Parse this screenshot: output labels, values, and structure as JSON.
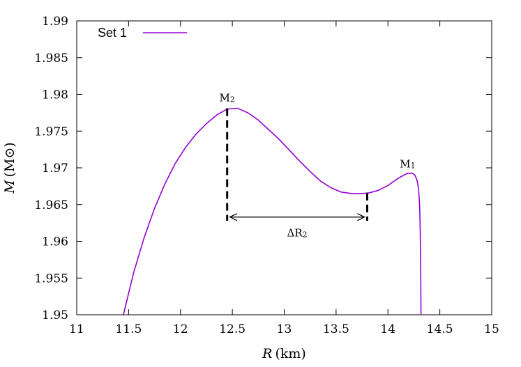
{
  "chart_data": {
    "type": "line",
    "xlabel_var": "R",
    "xlabel_unit": "(km)",
    "ylabel_var": "M",
    "ylabel_unit": "(M⊙)",
    "xlim": [
      11,
      15
    ],
    "ylim": [
      1.95,
      1.99
    ],
    "xticks": [
      11,
      11.5,
      12,
      12.5,
      13,
      13.5,
      14,
      14.5,
      15
    ],
    "xtick_labels": [
      "11",
      "11.5",
      "12",
      "12.5",
      "13",
      "13.5",
      "14",
      "14.5",
      "15"
    ],
    "yticks": [
      1.95,
      1.955,
      1.96,
      1.965,
      1.97,
      1.975,
      1.98,
      1.985,
      1.99
    ],
    "ytick_labels": [
      "1.95",
      "1.955",
      "1.96",
      "1.965",
      "1.97",
      "1.975",
      "1.98",
      "1.985",
      "1.99"
    ],
    "grid": false,
    "legend_position": "top-left",
    "series": [
      {
        "name": "Set 1",
        "color": "#9400d3",
        "x": [
          11.45,
          11.55,
          11.65,
          11.75,
          11.85,
          11.95,
          12.05,
          12.15,
          12.25,
          12.35,
          12.45,
          12.55,
          12.65,
          12.75,
          12.85,
          12.95,
          13.05,
          13.15,
          13.25,
          13.35,
          13.45,
          13.55,
          13.65,
          13.75,
          13.82,
          13.9,
          14.0,
          14.1,
          14.18,
          14.23,
          14.26,
          14.28,
          14.295,
          14.305,
          14.31,
          14.315,
          14.318
        ],
        "y": [
          1.95,
          1.9558,
          1.9605,
          1.9645,
          1.9678,
          1.9706,
          1.9728,
          1.9746,
          1.976,
          1.9772,
          1.978,
          1.9781,
          1.9775,
          1.9765,
          1.9752,
          1.9739,
          1.9724,
          1.9709,
          1.9695,
          1.9682,
          1.9673,
          1.9667,
          1.9665,
          1.9665,
          1.9666,
          1.9669,
          1.9676,
          1.9686,
          1.9692,
          1.9693,
          1.969,
          1.9683,
          1.9672,
          1.965,
          1.962,
          1.957,
          1.95
        ]
      }
    ],
    "annotations": {
      "m2_label_main": "M",
      "m2_label_sub": "2",
      "m1_label_main": "M",
      "m1_label_sub": "1",
      "delta_label_main": "ΔR",
      "delta_label_sub": "2",
      "m2_point": {
        "x": 12.45,
        "y": 1.9781
      },
      "m2_drop_to_y": 1.9628,
      "min_point": {
        "x": 13.8,
        "y": 1.9666
      },
      "min_drop_to_y": 1.9628,
      "m1_point": {
        "x": 14.23,
        "y": 1.9693
      },
      "delta_arrow_y": 1.9633,
      "delta_arrow_x": [
        12.45,
        13.8
      ]
    }
  },
  "legend": {
    "label": "Set 1"
  }
}
